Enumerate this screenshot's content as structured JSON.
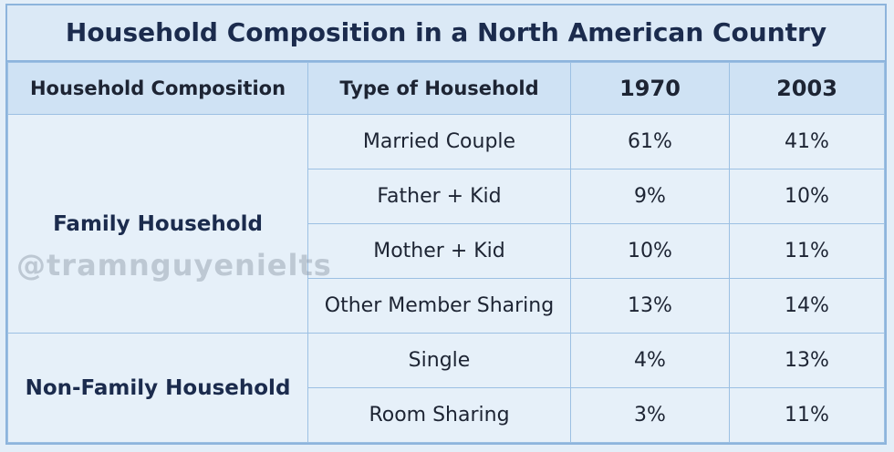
{
  "title": "Household Composition in a North American Country",
  "watermark": "@tramnguyenielts",
  "table": {
    "header": [
      "Household Composition",
      "Type of Household",
      "1970",
      "2003"
    ],
    "groups": [
      {
        "label": "Family Household",
        "rows": [
          [
            "Married Couple",
            "61%",
            "41%"
          ],
          [
            "Father + Kid",
            "9%",
            "10%"
          ],
          [
            "Mother + Kid",
            "10%",
            "11%"
          ],
          [
            "Other Member Sharing",
            "13%",
            "14%"
          ]
        ]
      },
      {
        "label": "Non-Family Household",
        "rows": [
          [
            "Single",
            "4%",
            "13%"
          ],
          [
            "Room Sharing",
            "3%",
            "11%"
          ]
        ]
      }
    ]
  }
}
